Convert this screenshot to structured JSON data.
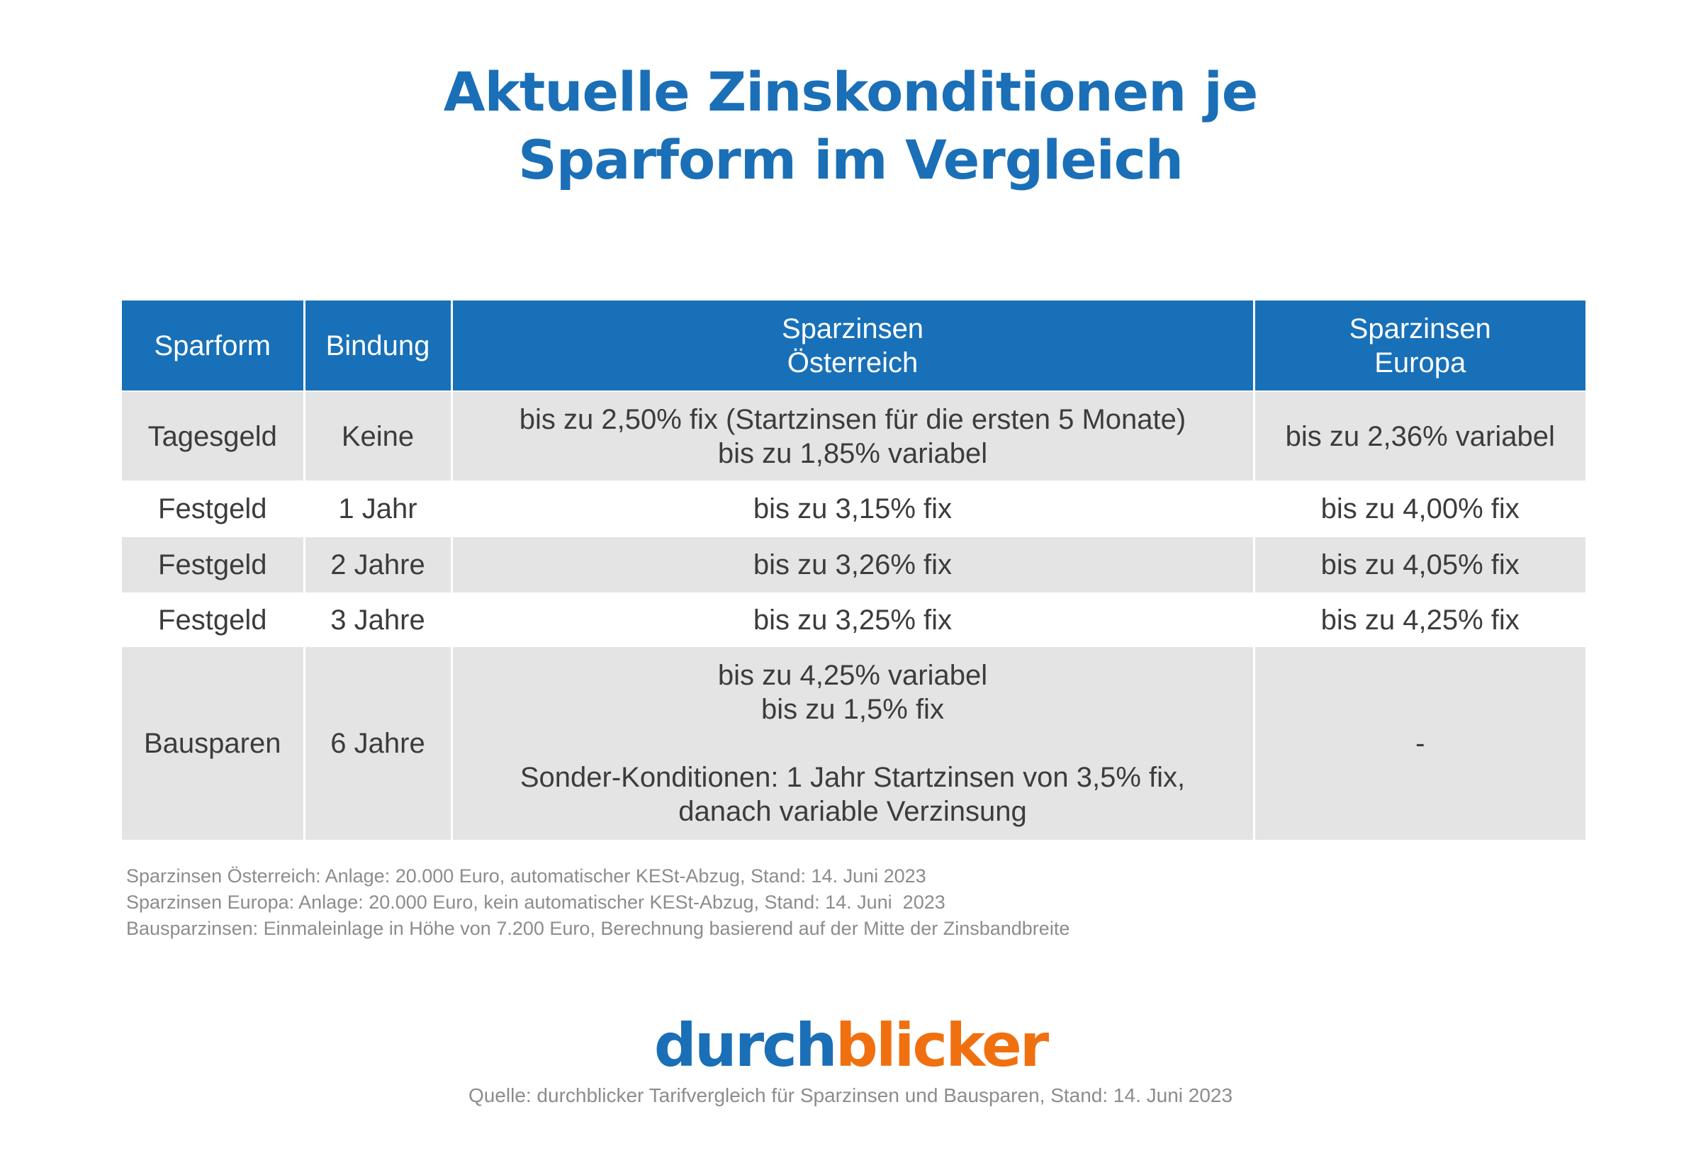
{
  "title": {
    "line1": "Aktuelle Zinskonditionen je",
    "line2": "Sparform im Vergleich"
  },
  "table": {
    "headers": [
      {
        "line1": "Sparform",
        "line2": ""
      },
      {
        "line1": "Bindung",
        "line2": ""
      },
      {
        "line1": "Sparzinsen",
        "line2": "Österreich"
      },
      {
        "line1": "Sparzinsen",
        "line2": "Europa"
      }
    ],
    "rows": [
      {
        "sparform": "Tagesgeld",
        "bindung": "Keine",
        "oesterreich": [
          "bis zu 2,50% fix (Startzinsen für die ersten 5 Monate)",
          "bis zu 1,85% variabel"
        ],
        "europa": "bis zu 2,36% variabel"
      },
      {
        "sparform": "Festgeld",
        "bindung": "1 Jahr",
        "oesterreich": [
          "bis zu 3,15% fix"
        ],
        "europa": "bis zu 4,00% fix"
      },
      {
        "sparform": "Festgeld",
        "bindung": "2 Jahre",
        "oesterreich": [
          "bis zu 3,26% fix"
        ],
        "europa": "bis zu 4,05% fix"
      },
      {
        "sparform": "Festgeld",
        "bindung": "3 Jahre",
        "oesterreich": [
          "bis zu 3,25% fix"
        ],
        "europa": "bis zu 4,25% fix"
      },
      {
        "sparform": "Bausparen",
        "bindung": "6 Jahre",
        "oesterreich": [
          "bis zu 4,25% variabel",
          "bis zu 1,5% fix",
          "",
          "Sonder-Konditionen: 1 Jahr Startzinsen von 3,5% fix,",
          "danach variable Verzinsung"
        ],
        "europa": "-"
      }
    ]
  },
  "footnotes": [
    "Sparzinsen Österreich: Anlage: 20.000 Euro, automatischer KESt-Abzug, Stand: 14. Juni 2023",
    "Sparzinsen Europa: Anlage: 20.000 Euro, kein automatischer KESt-Abzug, Stand: 14. Juni  2023",
    "Bausparzinsen: Einmaleinlage in Höhe von 7.200 Euro, Berechnung basierend auf der Mitte der Zinsbandbreite"
  ],
  "logo": {
    "part1": "durch",
    "part2": "blicker"
  },
  "source": "Quelle: durchblicker Tarifvergleich für Sparzinsen und Bausparen, Stand: 14. Juni 2023",
  "colors": {
    "brand_blue": "#1870b8",
    "brand_orange": "#f07010",
    "row_gray": "#e4e4e4"
  }
}
